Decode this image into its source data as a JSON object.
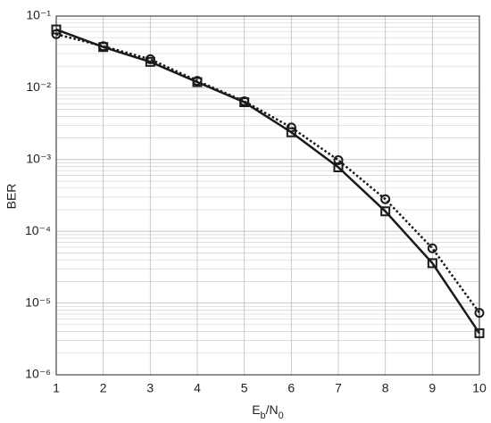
{
  "chart_data": {
    "type": "line",
    "ylabel": "BER",
    "xlabel": [
      {
        "text": "E"
      },
      {
        "text": "b",
        "sub": true
      },
      {
        "text": "/N"
      },
      {
        "text": "0",
        "sub": true
      }
    ],
    "x": [
      1,
      2,
      3,
      4,
      5,
      6,
      7,
      8,
      9,
      10
    ],
    "series": [
      {
        "color": "#1a1a1a",
        "linestyle": "solid",
        "marker": "square",
        "values": [
          0.065,
          0.037,
          0.023,
          0.012,
          0.0063,
          0.0024,
          0.00078,
          0.00019,
          3.6e-05,
          3.8e-06
        ]
      },
      {
        "color": "#1a1a1a",
        "linestyle": "dotted",
        "marker": "circle",
        "values": [
          0.056,
          0.038,
          0.025,
          0.0125,
          0.0065,
          0.0028,
          0.00098,
          0.00028,
          5.8e-05,
          7.3e-06
        ]
      }
    ],
    "xlim": [
      1,
      10
    ],
    "xticks": [
      1,
      2,
      3,
      4,
      5,
      6,
      7,
      8,
      9,
      10
    ],
    "ylim": [
      1e-06,
      0.1
    ],
    "ylog": true,
    "yticks": [
      {
        "value": 0.1,
        "label": "10⁻¹"
      },
      {
        "value": 0.01,
        "label": "10⁻²"
      },
      {
        "value": 0.001,
        "label": "10⁻³"
      },
      {
        "value": 0.0001,
        "label": "10⁻⁴"
      },
      {
        "value": 1e-05,
        "label": "10⁻⁵"
      },
      {
        "value": 1e-06,
        "label": "10⁻⁶"
      }
    ],
    "grid": true,
    "minor_grid": true
  }
}
